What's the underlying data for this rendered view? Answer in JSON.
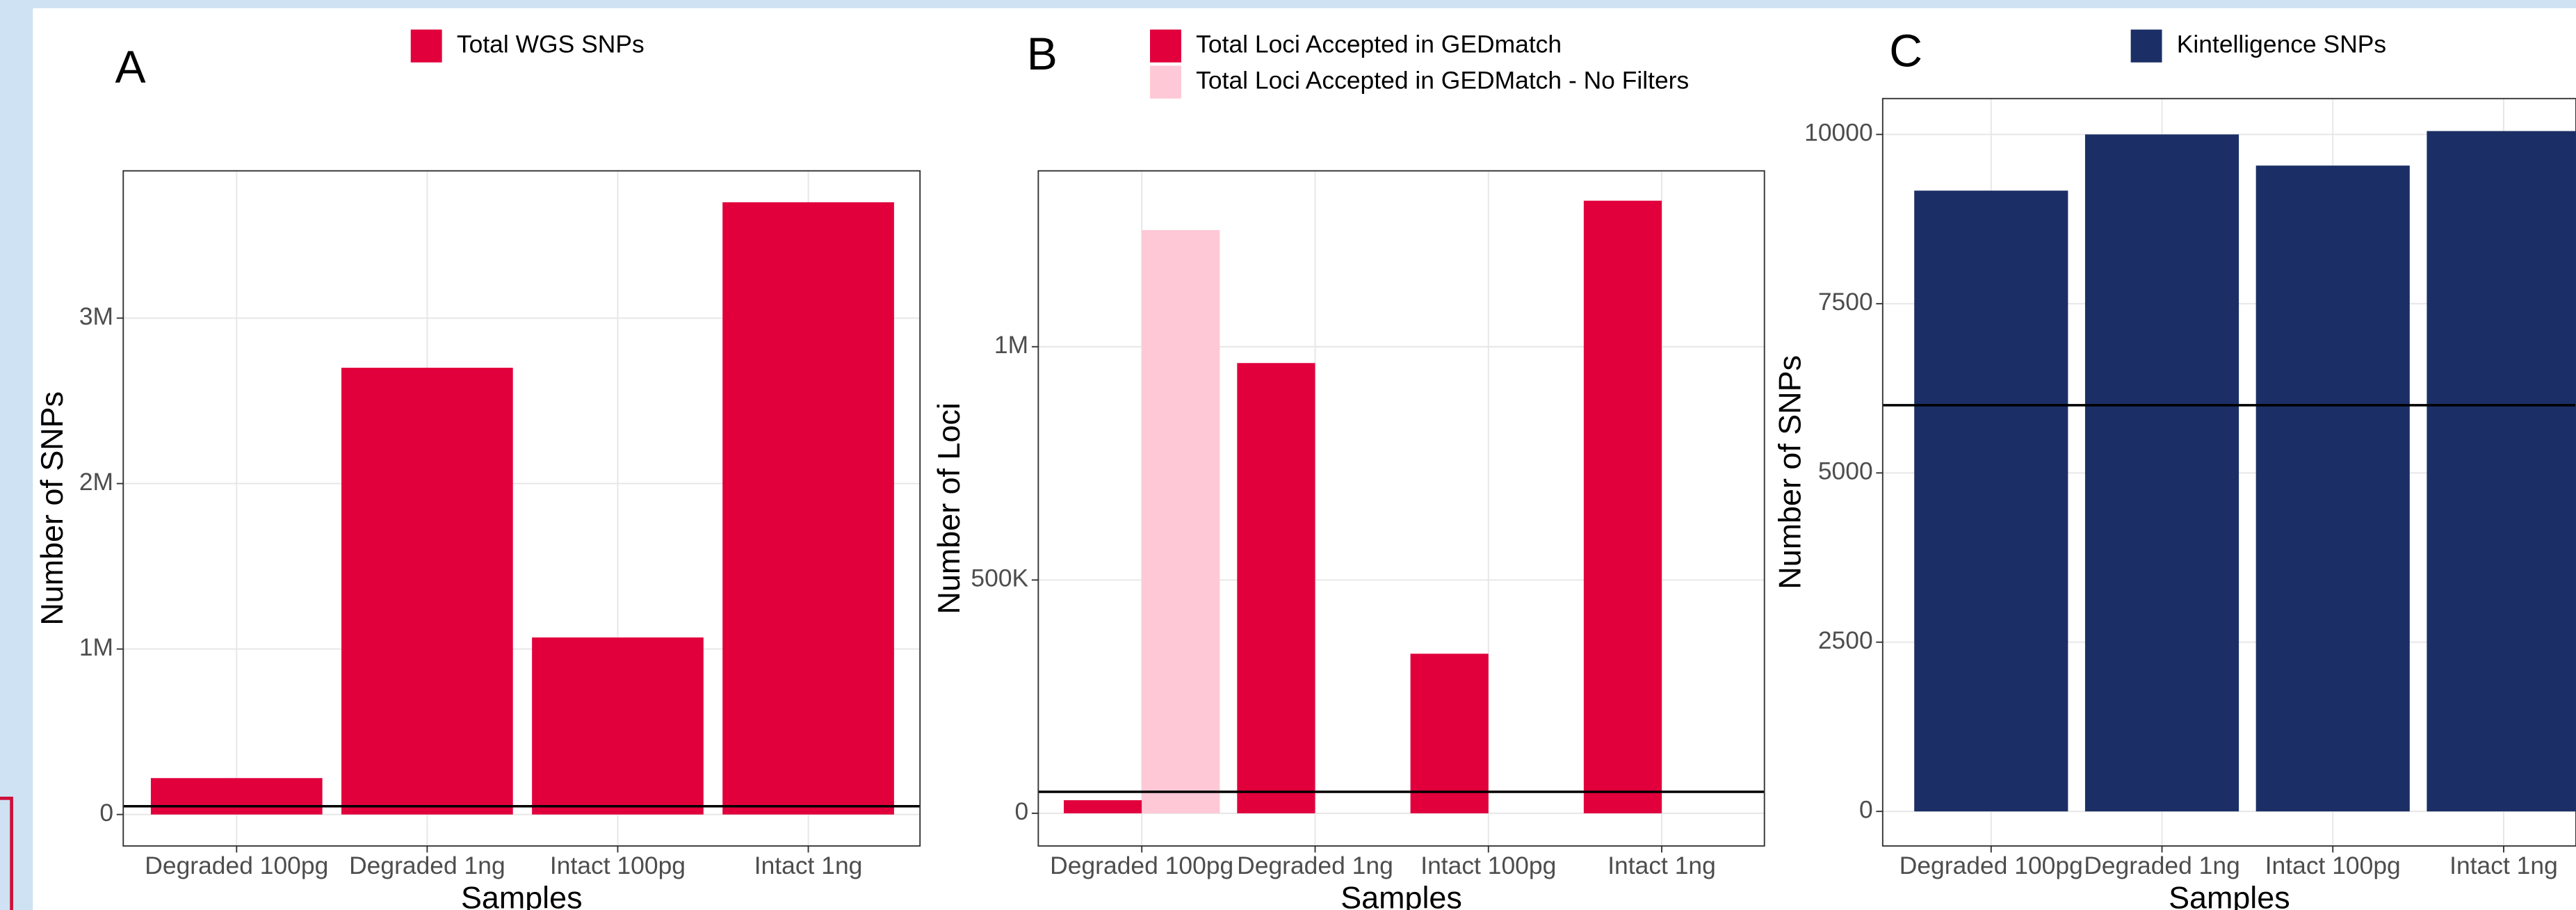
{
  "chart_data": [
    {
      "type": "bar",
      "panel_label": "A",
      "xlabel": "Samples",
      "ylabel": "Number of SNPs",
      "categories": [
        "Degraded 100pg",
        "Degraded 1ng",
        "Intact 100pg",
        "Intact 1ng"
      ],
      "series": [
        {
          "name": "Total WGS SNPs",
          "color": "#e1003c",
          "values": [
            220000,
            2700000,
            1070000,
            3700000
          ]
        }
      ],
      "ylim": [
        -190000,
        3890000
      ],
      "yticks": [
        0,
        {
          "value": 1000000,
          "label": "1M"
        },
        {
          "value": 2000000,
          "label": "2M"
        },
        {
          "value": 3000000,
          "label": "3M"
        }
      ],
      "hline": 50000,
      "grid": true,
      "legend": "top"
    },
    {
      "type": "bar",
      "panel_label": "B",
      "xlabel": "Samples",
      "ylabel": "Number of Loci",
      "categories": [
        "Degraded 100pg",
        "Degraded 1ng",
        "Intact 100pg",
        "Intact 1ng"
      ],
      "series": [
        {
          "name": "Total Loci Accepted in GEDmatch",
          "color": "#e1003c",
          "values": [
            28000,
            965000,
            342000,
            1313000
          ]
        },
        {
          "name": "Total Loci Accepted in GEDMatch - No Filters",
          "color": "#ffc8d6",
          "values": [
            1250000,
            null,
            null,
            null
          ]
        }
      ],
      "ylim": [
        -70000,
        1377000
      ],
      "yticks": [
        0,
        {
          "value": 500000,
          "label": "500K"
        },
        {
          "value": 1000000,
          "label": "1M"
        }
      ],
      "hline": 46000,
      "grid": true,
      "legend": "top"
    },
    {
      "type": "bar",
      "panel_label": "C",
      "xlabel": "Samples",
      "ylabel": "Number of SNPs",
      "categories": [
        "Degraded 100pg",
        "Degraded 1ng",
        "Intact 100pg",
        "Intact 1ng"
      ],
      "series": [
        {
          "name": "Kintelligence SNPs",
          "color": "#1b2f66",
          "values": [
            9170,
            10000,
            9540,
            10050
          ]
        }
      ],
      "ylim": [
        -510,
        10530
      ],
      "yticks": [
        0,
        2500,
        5000,
        7500,
        10000
      ],
      "hline": 6000,
      "grid": true,
      "legend": "top"
    }
  ]
}
